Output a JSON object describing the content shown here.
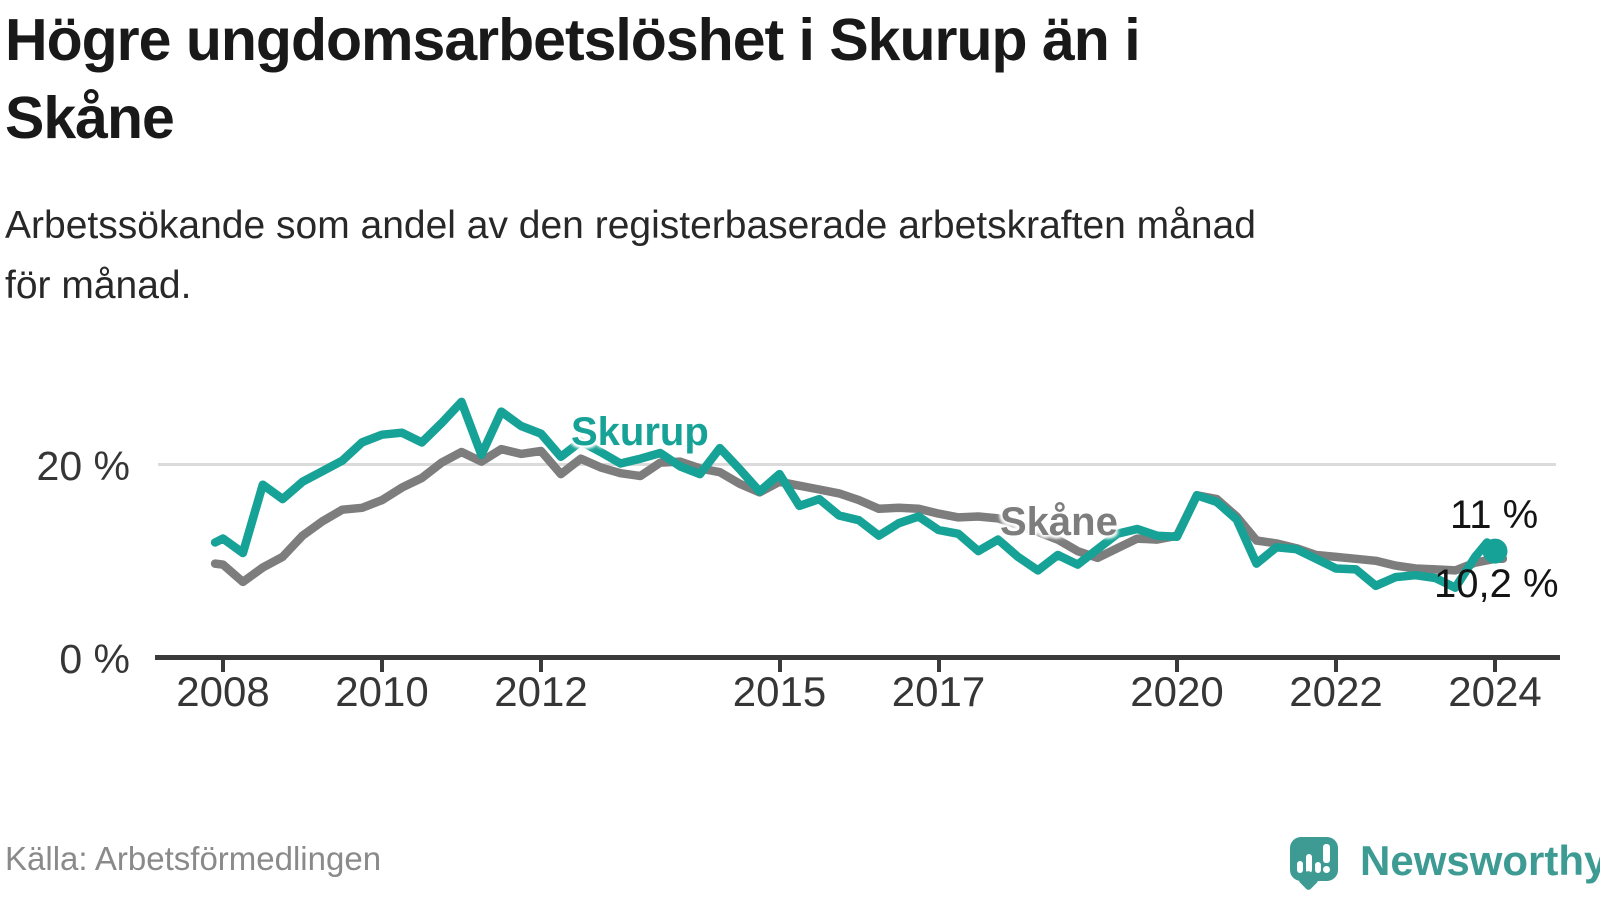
{
  "title": {
    "line1": "Högre ungdomsarbetslöshet i Skurup än i",
    "line2": "Skåne"
  },
  "subtitle": {
    "line1": "Arbetssökande som andel av den registerbaserade arbetskraften månad",
    "line2": "för månad."
  },
  "y_axis": {
    "tick_top": "20 %",
    "tick_bottom": "0 %"
  },
  "annotations": {
    "skurup_label": "Skurup",
    "skane_label": "Skåne",
    "end_value_skurup": "11 %",
    "end_value_skane": "10,2 %"
  },
  "source": "Källa: Arbetsförmedlingen",
  "branding": {
    "name": "Newsworthy",
    "icon": "newsworthy-speech-bubble-bar-chart-icon"
  },
  "colors": {
    "skurup_line": "#16a296",
    "skane_line": "#7d7d7d",
    "grid": "#dbdbdb",
    "axis": "#3a3a3a",
    "annotation_text": "#141414",
    "brand_teal": "#3d9b94"
  },
  "chart_data": {
    "type": "line",
    "title": "Högre ungdomsarbetslöshet i Skurup än i Skåne",
    "subtitle": "Arbetssökande som andel av den registerbaserade arbetskraften månad för månad.",
    "unit": "%",
    "xlabel": "",
    "ylabel": "",
    "x_ticks": [
      2008,
      2010,
      2012,
      2015,
      2017,
      2020,
      2022,
      2024
    ],
    "ylim": [
      0,
      28
    ],
    "grid_y": [
      20
    ],
    "legend_position": "inline-labels",
    "series": [
      {
        "name": "Skurup",
        "color": "#16a296",
        "end_dot": true,
        "end_value": 11.0,
        "points": [
          [
            2007.9,
            11.9
          ],
          [
            2008.0,
            12.3
          ],
          [
            2008.25,
            10.8
          ],
          [
            2008.5,
            17.9
          ],
          [
            2008.75,
            16.4
          ],
          [
            2009.0,
            18.2
          ],
          [
            2009.25,
            19.3
          ],
          [
            2009.5,
            20.4
          ],
          [
            2009.75,
            22.3
          ],
          [
            2010.0,
            23.1
          ],
          [
            2010.25,
            23.3
          ],
          [
            2010.5,
            22.3
          ],
          [
            2010.75,
            24.3
          ],
          [
            2011.0,
            26.5
          ],
          [
            2011.25,
            21.0
          ],
          [
            2011.5,
            25.5
          ],
          [
            2011.75,
            24.0
          ],
          [
            2012.0,
            23.2
          ],
          [
            2012.25,
            20.8
          ],
          [
            2012.5,
            22.4
          ],
          [
            2012.75,
            21.3
          ],
          [
            2013.0,
            20.1
          ],
          [
            2013.25,
            20.6
          ],
          [
            2013.5,
            21.2
          ],
          [
            2013.75,
            19.8
          ],
          [
            2014.0,
            19.0
          ],
          [
            2014.25,
            21.7
          ],
          [
            2014.5,
            19.5
          ],
          [
            2014.75,
            17.2
          ],
          [
            2015.0,
            19.0
          ],
          [
            2015.25,
            15.7
          ],
          [
            2015.5,
            16.4
          ],
          [
            2015.75,
            14.7
          ],
          [
            2016.0,
            14.2
          ],
          [
            2016.25,
            12.6
          ],
          [
            2016.5,
            13.9
          ],
          [
            2016.75,
            14.6
          ],
          [
            2017.0,
            13.2
          ],
          [
            2017.25,
            12.8
          ],
          [
            2017.5,
            11.0
          ],
          [
            2017.75,
            12.2
          ],
          [
            2018.0,
            10.4
          ],
          [
            2018.25,
            9.0
          ],
          [
            2018.5,
            10.6
          ],
          [
            2018.75,
            9.6
          ],
          [
            2019.0,
            11.2
          ],
          [
            2019.25,
            12.8
          ],
          [
            2019.5,
            13.3
          ],
          [
            2019.75,
            12.6
          ],
          [
            2020.0,
            12.5
          ],
          [
            2020.25,
            16.8
          ],
          [
            2020.5,
            16.1
          ],
          [
            2020.75,
            14.3
          ],
          [
            2021.0,
            9.7
          ],
          [
            2021.25,
            11.4
          ],
          [
            2021.5,
            11.2
          ],
          [
            2021.75,
            10.2
          ],
          [
            2022.0,
            9.2
          ],
          [
            2022.25,
            9.1
          ],
          [
            2022.5,
            7.4
          ],
          [
            2022.75,
            8.3
          ],
          [
            2023.0,
            8.5
          ],
          [
            2023.25,
            8.2
          ],
          [
            2023.5,
            7.2
          ],
          [
            2023.75,
            10.4
          ],
          [
            2023.9,
            11.9
          ],
          [
            2024.0,
            11.0
          ]
        ]
      },
      {
        "name": "Skåne",
        "color": "#7d7d7d",
        "end_dot": false,
        "end_value": 10.2,
        "points": [
          [
            2007.9,
            9.7
          ],
          [
            2008.0,
            9.6
          ],
          [
            2008.25,
            7.8
          ],
          [
            2008.5,
            9.3
          ],
          [
            2008.75,
            10.4
          ],
          [
            2009.0,
            12.6
          ],
          [
            2009.25,
            14.1
          ],
          [
            2009.5,
            15.3
          ],
          [
            2009.75,
            15.5
          ],
          [
            2010.0,
            16.3
          ],
          [
            2010.25,
            17.6
          ],
          [
            2010.5,
            18.6
          ],
          [
            2010.75,
            20.2
          ],
          [
            2011.0,
            21.3
          ],
          [
            2011.25,
            20.3
          ],
          [
            2011.5,
            21.6
          ],
          [
            2011.75,
            21.1
          ],
          [
            2012.0,
            21.4
          ],
          [
            2012.25,
            19.0
          ],
          [
            2012.5,
            20.6
          ],
          [
            2012.75,
            19.7
          ],
          [
            2013.0,
            19.1
          ],
          [
            2013.25,
            18.8
          ],
          [
            2013.5,
            20.2
          ],
          [
            2013.75,
            20.3
          ],
          [
            2014.0,
            19.6
          ],
          [
            2014.25,
            19.2
          ],
          [
            2014.5,
            18.0
          ],
          [
            2014.75,
            17.1
          ],
          [
            2015.0,
            18.2
          ],
          [
            2015.25,
            17.8
          ],
          [
            2015.5,
            17.4
          ],
          [
            2015.75,
            17.0
          ],
          [
            2016.0,
            16.3
          ],
          [
            2016.25,
            15.4
          ],
          [
            2016.5,
            15.5
          ],
          [
            2016.75,
            15.4
          ],
          [
            2017.0,
            14.9
          ],
          [
            2017.25,
            14.5
          ],
          [
            2017.5,
            14.6
          ],
          [
            2017.75,
            14.4
          ],
          [
            2018.0,
            13.7
          ],
          [
            2018.25,
            13.0
          ],
          [
            2018.5,
            12.2
          ],
          [
            2018.75,
            11.0
          ],
          [
            2019.0,
            10.3
          ],
          [
            2019.25,
            11.3
          ],
          [
            2019.5,
            12.3
          ],
          [
            2019.75,
            12.2
          ],
          [
            2020.0,
            12.6
          ],
          [
            2020.25,
            16.8
          ],
          [
            2020.5,
            16.4
          ],
          [
            2020.75,
            14.6
          ],
          [
            2021.0,
            12.1
          ],
          [
            2021.25,
            11.8
          ],
          [
            2021.5,
            11.3
          ],
          [
            2021.75,
            10.6
          ],
          [
            2022.0,
            10.4
          ],
          [
            2022.25,
            10.2
          ],
          [
            2022.5,
            10.0
          ],
          [
            2022.75,
            9.5
          ],
          [
            2023.0,
            9.2
          ],
          [
            2023.25,
            9.1
          ],
          [
            2023.5,
            9.0
          ],
          [
            2023.75,
            9.8
          ],
          [
            2024.0,
            10.2
          ],
          [
            2024.1,
            10.2
          ]
        ]
      }
    ]
  }
}
